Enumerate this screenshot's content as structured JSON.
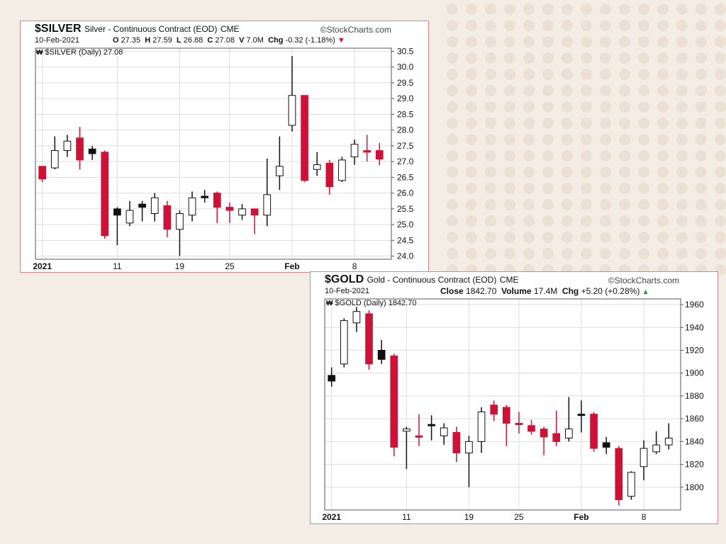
{
  "colors": {
    "up": "#ffffff",
    "down": "#cc1337",
    "grid": "#dddddd",
    "frame": "#555555",
    "border": "#d9828a",
    "background": "#f4ede6",
    "dots": "#ece0d4"
  },
  "watermark": "StockCharts.com",
  "chart_data": [
    {
      "type": "candlestick",
      "symbol": "$SILVER",
      "name": "Silver - Continuous Contract (EOD)",
      "exchange": "CME",
      "date": "10-Feb-2021",
      "stats": {
        "o_label": "O",
        "o": "27.35",
        "h_label": "H",
        "h": "27.59",
        "l_label": "L",
        "l": "26.88",
        "c_label": "C",
        "c": "27.08",
        "v_label": "V",
        "v": "7.0M",
        "chg_label": "Chg",
        "chg": "-0.32 (-1.18%)"
      },
      "chg_direction": "down",
      "inner_label": "$SILVER (Daily) 27.08",
      "y_ticks": [
        "24.0",
        "24.5",
        "25.0",
        "25.5",
        "26.0",
        "26.5",
        "27.0",
        "27.5",
        "28.0",
        "28.5",
        "29.0",
        "29.5",
        "30.0",
        "30.5"
      ],
      "ylim": [
        23.9,
        30.6
      ],
      "x_labels": [
        {
          "text": "2021",
          "idx": 0
        },
        {
          "text": "11",
          "idx": 6
        },
        {
          "text": "19",
          "idx": 11
        },
        {
          "text": "25",
          "idx": 15
        },
        {
          "text": "Feb",
          "idx": 20
        },
        {
          "text": "8",
          "idx": 25
        }
      ],
      "x_label_bold": [
        "2021",
        "Feb"
      ],
      "candles": [
        {
          "date": "2020-12-31",
          "open": 26.45,
          "high": 26.85,
          "low": 26.35,
          "close": 26.85,
          "style": "down"
        },
        {
          "date": "2021-01-04",
          "open": 26.8,
          "high": 27.8,
          "low": 26.75,
          "close": 27.35,
          "style": "up"
        },
        {
          "date": "2021-01-05",
          "open": 27.35,
          "high": 27.85,
          "low": 27.15,
          "close": 27.65,
          "style": "up"
        },
        {
          "date": "2021-01-06",
          "open": 27.75,
          "high": 28.1,
          "low": 26.75,
          "close": 27.05,
          "style": "down"
        },
        {
          "date": "2021-01-07",
          "open": 27.4,
          "high": 27.5,
          "low": 27.05,
          "close": 27.25,
          "style": "black"
        },
        {
          "date": "2021-01-08",
          "open": 27.3,
          "high": 27.35,
          "low": 24.55,
          "close": 24.65,
          "style": "down"
        },
        {
          "date": "2021-01-11",
          "open": 25.5,
          "high": 25.55,
          "low": 24.35,
          "close": 25.3,
          "style": "black"
        },
        {
          "date": "2021-01-12",
          "open": 25.05,
          "high": 25.75,
          "low": 24.95,
          "close": 25.45,
          "style": "up"
        },
        {
          "date": "2021-01-13",
          "open": 25.55,
          "high": 25.75,
          "low": 25.1,
          "close": 25.65,
          "style": "black"
        },
        {
          "date": "2021-01-14",
          "open": 25.35,
          "high": 26.0,
          "low": 25.1,
          "close": 25.85,
          "style": "up"
        },
        {
          "date": "2021-01-15",
          "open": 25.6,
          "high": 25.75,
          "low": 24.6,
          "close": 24.85,
          "style": "down"
        },
        {
          "date": "2021-01-19",
          "open": 24.85,
          "high": 25.45,
          "low": 24.0,
          "close": 25.35,
          "style": "up"
        },
        {
          "date": "2021-01-20",
          "open": 25.3,
          "high": 26.05,
          "low": 25.1,
          "close": 25.85,
          "style": "up"
        },
        {
          "date": "2021-01-21",
          "open": 25.85,
          "high": 26.1,
          "low": 25.7,
          "close": 25.9,
          "style": "black"
        },
        {
          "date": "2021-01-22",
          "open": 26.0,
          "high": 26.05,
          "low": 25.05,
          "close": 25.55,
          "style": "down"
        },
        {
          "date": "2021-01-25",
          "open": 25.55,
          "high": 25.7,
          "low": 25.05,
          "close": 25.45,
          "style": "down"
        },
        {
          "date": "2021-01-26",
          "open": 25.3,
          "high": 25.65,
          "low": 25.15,
          "close": 25.5,
          "style": "up"
        },
        {
          "date": "2021-01-27",
          "open": 25.5,
          "high": 25.5,
          "low": 24.7,
          "close": 25.3,
          "style": "down"
        },
        {
          "date": "2021-01-28",
          "open": 25.3,
          "high": 27.1,
          "low": 24.95,
          "close": 25.95,
          "style": "up"
        },
        {
          "date": "2021-01-29",
          "open": 26.55,
          "high": 27.8,
          "low": 26.1,
          "close": 26.85,
          "style": "up"
        },
        {
          "date": "2021-02-01",
          "open": 28.15,
          "high": 30.35,
          "low": 27.95,
          "close": 29.1,
          "style": "up"
        },
        {
          "date": "2021-02-02",
          "open": 29.1,
          "high": 29.1,
          "low": 26.35,
          "close": 26.4,
          "style": "down"
        },
        {
          "date": "2021-02-03",
          "open": 26.75,
          "high": 27.3,
          "low": 26.55,
          "close": 26.9,
          "style": "up"
        },
        {
          "date": "2021-02-04",
          "open": 26.95,
          "high": 27.05,
          "low": 25.95,
          "close": 26.2,
          "style": "down"
        },
        {
          "date": "2021-02-05",
          "open": 26.4,
          "high": 27.15,
          "low": 26.35,
          "close": 27.05,
          "style": "up"
        },
        {
          "date": "2021-02-08",
          "open": 27.15,
          "high": 27.7,
          "low": 26.9,
          "close": 27.55,
          "style": "up"
        },
        {
          "date": "2021-02-09",
          "open": 27.35,
          "high": 27.85,
          "low": 27.0,
          "close": 27.3,
          "style": "down"
        },
        {
          "date": "2021-02-10",
          "open": 27.35,
          "high": 27.59,
          "low": 26.88,
          "close": 27.08,
          "style": "down"
        }
      ]
    },
    {
      "type": "candlestick",
      "symbol": "$GOLD",
      "name": "Gold - Continuous Contract (EOD)",
      "exchange": "CME",
      "date": "10-Feb-2021",
      "stats": {
        "close_label": "Close",
        "close": "1842.70",
        "volume_label": "Volume",
        "volume": "17.4M",
        "chg_label": "Chg",
        "chg": "+5.20 (+0.28%)"
      },
      "chg_direction": "up",
      "inner_label": "$GOLD (Daily) 1842.70",
      "y_ticks": [
        "1800",
        "1820",
        "1840",
        "1860",
        "1880",
        "1900",
        "1920",
        "1940",
        "1960"
      ],
      "ylim": [
        1780,
        1965
      ],
      "x_labels": [
        {
          "text": "2021",
          "idx": 0
        },
        {
          "text": "11",
          "idx": 6
        },
        {
          "text": "19",
          "idx": 11
        },
        {
          "text": "25",
          "idx": 15
        },
        {
          "text": "Feb",
          "idx": 20
        },
        {
          "text": "8",
          "idx": 25
        }
      ],
      "x_label_bold": [
        "2021",
        "Feb"
      ],
      "candles": [
        {
          "date": "2020-12-31",
          "open": 1893,
          "high": 1905,
          "low": 1888,
          "close": 1898,
          "style": "black"
        },
        {
          "date": "2021-01-04",
          "open": 1908,
          "high": 1948,
          "low": 1905,
          "close": 1946,
          "style": "up"
        },
        {
          "date": "2021-01-05",
          "open": 1944,
          "high": 1958,
          "low": 1936,
          "close": 1954,
          "style": "up"
        },
        {
          "date": "2021-01-06",
          "open": 1952,
          "high": 1955,
          "low": 1903,
          "close": 1908,
          "style": "down"
        },
        {
          "date": "2021-01-07",
          "open": 1920,
          "high": 1929,
          "low": 1908,
          "close": 1912,
          "style": "black"
        },
        {
          "date": "2021-01-08",
          "open": 1915,
          "high": 1917,
          "low": 1827,
          "close": 1835,
          "style": "down"
        },
        {
          "date": "2021-01-11",
          "open": 1849,
          "high": 1853,
          "low": 1816,
          "close": 1851,
          "style": "up"
        },
        {
          "date": "2021-01-12",
          "open": 1845,
          "high": 1864,
          "low": 1836,
          "close": 1844,
          "style": "down"
        },
        {
          "date": "2021-01-13",
          "open": 1855,
          "high": 1863,
          "low": 1841,
          "close": 1855,
          "style": "black"
        },
        {
          "date": "2021-01-14",
          "open": 1845,
          "high": 1856,
          "low": 1837,
          "close": 1852,
          "style": "up"
        },
        {
          "date": "2021-01-15",
          "open": 1848,
          "high": 1853,
          "low": 1822,
          "close": 1830,
          "style": "down"
        },
        {
          "date": "2021-01-19",
          "open": 1830,
          "high": 1845,
          "low": 1800,
          "close": 1840,
          "style": "up"
        },
        {
          "date": "2021-01-20",
          "open": 1840,
          "high": 1870,
          "low": 1830,
          "close": 1866,
          "style": "up"
        },
        {
          "date": "2021-01-21",
          "open": 1872,
          "high": 1876,
          "low": 1858,
          "close": 1864,
          "style": "down"
        },
        {
          "date": "2021-01-22",
          "open": 1870,
          "high": 1872,
          "low": 1836,
          "close": 1856,
          "style": "down"
        },
        {
          "date": "2021-01-25",
          "open": 1856,
          "high": 1866,
          "low": 1847,
          "close": 1856,
          "style": "down"
        },
        {
          "date": "2021-01-26",
          "open": 1854,
          "high": 1859,
          "low": 1846,
          "close": 1849,
          "style": "down"
        },
        {
          "date": "2021-01-27",
          "open": 1851,
          "high": 1853,
          "low": 1828,
          "close": 1844,
          "style": "down"
        },
        {
          "date": "2021-01-28",
          "open": 1847,
          "high": 1867,
          "low": 1836,
          "close": 1840,
          "style": "down"
        },
        {
          "date": "2021-01-29",
          "open": 1843,
          "high": 1879,
          "low": 1840,
          "close": 1851,
          "style": "up"
        },
        {
          "date": "2021-02-01",
          "open": 1864,
          "high": 1876,
          "low": 1848,
          "close": 1864,
          "style": "black"
        },
        {
          "date": "2021-02-02",
          "open": 1864,
          "high": 1866,
          "low": 1831,
          "close": 1834,
          "style": "down"
        },
        {
          "date": "2021-02-03",
          "open": 1839,
          "high": 1844,
          "low": 1829,
          "close": 1835,
          "style": "black"
        },
        {
          "date": "2021-02-04",
          "open": 1834,
          "high": 1836,
          "low": 1784,
          "close": 1789,
          "style": "down"
        },
        {
          "date": "2021-02-05",
          "open": 1792,
          "high": 1814,
          "low": 1789,
          "close": 1813,
          "style": "up"
        },
        {
          "date": "2021-02-08",
          "open": 1818,
          "high": 1841,
          "low": 1806,
          "close": 1834,
          "style": "up"
        },
        {
          "date": "2021-02-09",
          "open": 1831,
          "high": 1849,
          "low": 1829,
          "close": 1837,
          "style": "up"
        },
        {
          "date": "2021-02-10",
          "open": 1837,
          "high": 1856,
          "low": 1833,
          "close": 1843,
          "style": "up"
        }
      ]
    }
  ]
}
